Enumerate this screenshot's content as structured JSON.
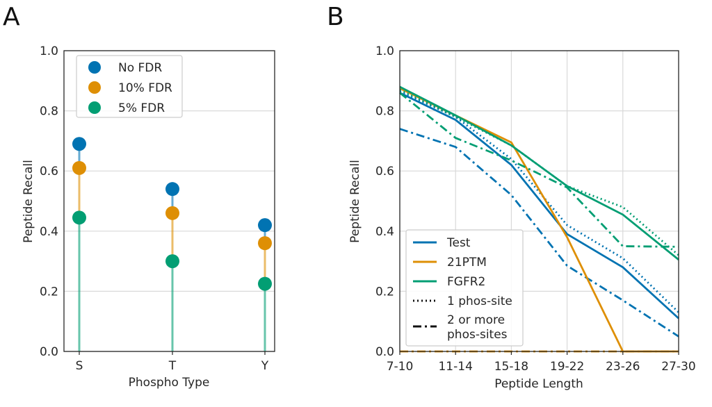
{
  "colors": {
    "blue": "#0173b2",
    "orange": "#de8f05",
    "green": "#029e73"
  },
  "chart_data": [
    {
      "panel": "A",
      "type": "scatter",
      "xlabel": "Phospho Type",
      "ylabel": "Peptide Recall",
      "categories": [
        "S",
        "T",
        "Y"
      ],
      "ylim": [
        0.0,
        1.0
      ],
      "yticks": [
        "0.0",
        "0.2",
        "0.4",
        "0.6",
        "0.8",
        "1.0"
      ],
      "grid": true,
      "legend_position": "top-left",
      "series": [
        {
          "name": "No FDR",
          "color": "#0173b2",
          "values": [
            0.69,
            0.54,
            0.42
          ]
        },
        {
          "name": "10% FDR",
          "color": "#de8f05",
          "values": [
            0.61,
            0.46,
            0.36
          ]
        },
        {
          "name": "5% FDR",
          "color": "#029e73",
          "values": [
            0.445,
            0.3,
            0.225
          ]
        }
      ]
    },
    {
      "panel": "B",
      "type": "line",
      "xlabel": "Peptide Length",
      "ylabel": "Peptide Recall",
      "categories": [
        "7-10",
        "11-14",
        "15-18",
        "19-22",
        "23-26",
        "27-30"
      ],
      "ylim": [
        0.0,
        1.0
      ],
      "yticks": [
        "0.0",
        "0.2",
        "0.4",
        "0.6",
        "0.8",
        "1.0"
      ],
      "grid": true,
      "legend_position": "bottom-left",
      "legend": {
        "models": [
          {
            "name": "Test",
            "color": "#0173b2"
          },
          {
            "name": "21PTM",
            "color": "#de8f05"
          },
          {
            "name": "FGFR2",
            "color": "#029e73"
          }
        ],
        "styles": [
          {
            "name": "1 phos-site",
            "dash": "dotted"
          },
          {
            "name_lines": [
              "2 or more",
              "phos-sites"
            ],
            "dash": "dashdot"
          }
        ]
      },
      "series": [
        {
          "model": "Test",
          "style": "solid",
          "color": "#0173b2",
          "values": [
            0.86,
            0.77,
            0.62,
            0.39,
            0.28,
            0.11
          ]
        },
        {
          "model": "Test",
          "style": "dotted",
          "color": "#0173b2",
          "values": [
            0.865,
            0.78,
            0.64,
            0.42,
            0.31,
            0.13
          ]
        },
        {
          "model": "Test",
          "style": "dashdot",
          "color": "#0173b2",
          "values": [
            0.74,
            0.68,
            0.52,
            0.285,
            0.17,
            0.05
          ]
        },
        {
          "model": "21PTM",
          "style": "solid",
          "color": "#de8f05",
          "values": [
            0.875,
            0.785,
            0.695,
            0.38,
            0.0,
            0.0
          ]
        },
        {
          "model": "21PTM",
          "style": "dashdot",
          "color": "#de8f05",
          "values": [
            0.0,
            0.0,
            0.0,
            0.0,
            0.0,
            0.0
          ]
        },
        {
          "model": "FGFR2",
          "style": "solid",
          "color": "#029e73",
          "values": [
            0.88,
            0.785,
            0.685,
            0.55,
            0.455,
            0.305
          ]
        },
        {
          "model": "FGFR2",
          "style": "dotted",
          "color": "#029e73",
          "values": [
            0.87,
            0.78,
            0.685,
            0.55,
            0.48,
            0.32
          ]
        },
        {
          "model": "FGFR2",
          "style": "dashdot",
          "color": "#029e73",
          "values": [
            0.86,
            0.71,
            0.635,
            0.545,
            0.35,
            0.348
          ]
        }
      ]
    }
  ]
}
